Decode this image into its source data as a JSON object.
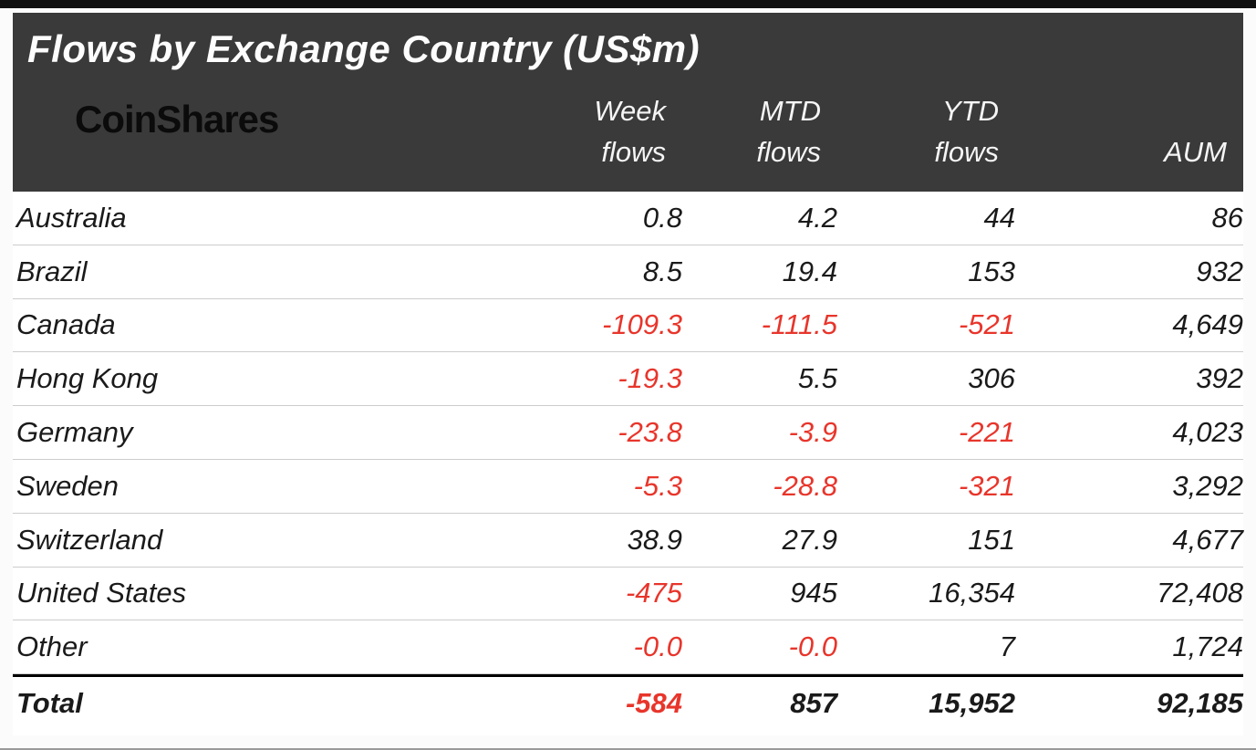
{
  "chart_data": {
    "type": "table",
    "title": "Flows by Exchange Country (US$m)",
    "logo": "CoinShares",
    "column_headers": [
      {
        "top": "Week",
        "bottom": "flows"
      },
      {
        "top": "MTD",
        "bottom": "flows"
      },
      {
        "top": "YTD",
        "bottom": "flows"
      },
      {
        "top": "",
        "bottom": "AUM"
      }
    ],
    "rows": [
      {
        "label": "Australia",
        "values": [
          "0.8",
          "4.2",
          "44",
          "86"
        ]
      },
      {
        "label": "Brazil",
        "values": [
          "8.5",
          "19.4",
          "153",
          "932"
        ]
      },
      {
        "label": "Canada",
        "values": [
          "-109.3",
          "-111.5",
          "-521",
          "4,649"
        ]
      },
      {
        "label": "Hong Kong",
        "values": [
          "-19.3",
          "5.5",
          "306",
          "392"
        ]
      },
      {
        "label": "Germany",
        "values": [
          "-23.8",
          "-3.9",
          "-221",
          "4,023"
        ]
      },
      {
        "label": "Sweden",
        "values": [
          "-5.3",
          "-28.8",
          "-321",
          "3,292"
        ]
      },
      {
        "label": "Switzerland",
        "values": [
          "38.9",
          "27.9",
          "151",
          "4,677"
        ]
      },
      {
        "label": "United States",
        "values": [
          "-475",
          "945",
          "16,354",
          "72,408"
        ]
      },
      {
        "label": "Other",
        "values": [
          "-0.0",
          "-0.0",
          "7",
          "1,724"
        ]
      }
    ],
    "total_row": {
      "label": "Total",
      "values": [
        "-584",
        "857",
        "15,952",
        "92,185"
      ]
    },
    "colors": {
      "header_bg": "#3a3a3a",
      "negative": "#e8352b",
      "positive": "#1a1a1a",
      "logo": "#0b0b0b"
    }
  }
}
